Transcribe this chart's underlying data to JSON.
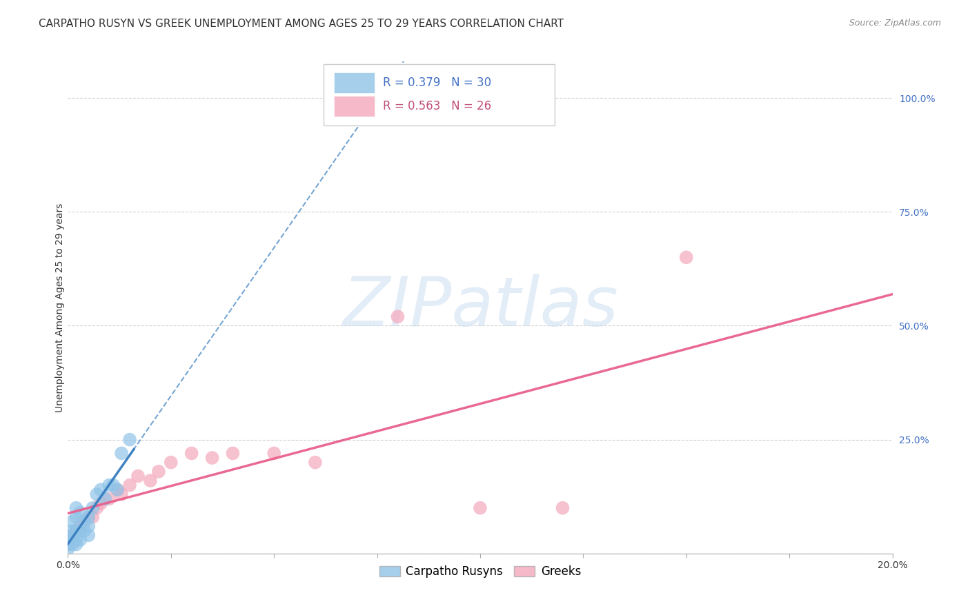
{
  "title": "CARPATHO RUSYN VS GREEK UNEMPLOYMENT AMONG AGES 25 TO 29 YEARS CORRELATION CHART",
  "source": "Source: ZipAtlas.com",
  "ylabel": "Unemployment Among Ages 25 to 29 years",
  "xlim": [
    0.0,
    0.2
  ],
  "ylim": [
    0.0,
    1.08
  ],
  "xticks": [
    0.0,
    0.025,
    0.05,
    0.075,
    0.1,
    0.125,
    0.15,
    0.175,
    0.2
  ],
  "yticks": [
    0.0,
    0.25,
    0.5,
    0.75,
    1.0
  ],
  "ytick_labels": [
    "",
    "25.0%",
    "50.0%",
    "75.0%",
    "100.0%"
  ],
  "background_color": "#ffffff",
  "carpatho_R": 0.379,
  "carpatho_N": 30,
  "greek_R": 0.563,
  "greek_N": 26,
  "carpatho_color": "#90c4e8",
  "greek_color": "#f4a8bc",
  "carpatho_line_color": "#3a7fc1",
  "greek_line_color": "#e8618c",
  "carpatho_x": [
    0.0,
    0.0,
    0.0,
    0.001,
    0.001,
    0.001,
    0.001,
    0.001,
    0.002,
    0.002,
    0.002,
    0.002,
    0.002,
    0.003,
    0.003,
    0.003,
    0.004,
    0.004,
    0.005,
    0.005,
    0.005,
    0.006,
    0.007,
    0.008,
    0.009,
    0.01,
    0.011,
    0.012,
    0.013,
    0.015
  ],
  "carpatho_y": [
    0.01,
    0.02,
    0.03,
    0.02,
    0.03,
    0.04,
    0.05,
    0.07,
    0.02,
    0.03,
    0.05,
    0.08,
    0.1,
    0.03,
    0.05,
    0.09,
    0.05,
    0.07,
    0.04,
    0.06,
    0.08,
    0.1,
    0.13,
    0.14,
    0.12,
    0.15,
    0.15,
    0.14,
    0.22,
    0.25
  ],
  "greek_x": [
    0.0,
    0.001,
    0.002,
    0.003,
    0.004,
    0.005,
    0.006,
    0.007,
    0.008,
    0.01,
    0.012,
    0.013,
    0.015,
    0.017,
    0.02,
    0.022,
    0.025,
    0.03,
    0.035,
    0.04,
    0.05,
    0.06,
    0.08,
    0.1,
    0.12,
    0.15
  ],
  "greek_y": [
    0.02,
    0.04,
    0.05,
    0.06,
    0.07,
    0.08,
    0.08,
    0.1,
    0.11,
    0.12,
    0.14,
    0.13,
    0.15,
    0.17,
    0.16,
    0.18,
    0.2,
    0.22,
    0.21,
    0.22,
    0.22,
    0.2,
    0.52,
    0.1,
    0.1,
    0.65
  ],
  "title_fontsize": 11,
  "source_fontsize": 9,
  "axis_label_fontsize": 10,
  "tick_fontsize": 10,
  "legend_fontsize": 12,
  "watermark_text": "ZIPatlas",
  "watermark_color": "#c8ddf0",
  "marker_size": 200
}
